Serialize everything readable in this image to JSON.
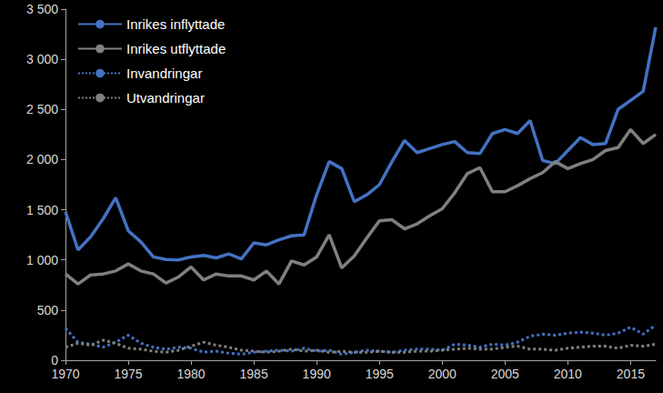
{
  "chart_data": {
    "type": "line",
    "x": [
      1970,
      1971,
      1972,
      1973,
      1974,
      1975,
      1976,
      1977,
      1978,
      1979,
      1980,
      1981,
      1982,
      1983,
      1984,
      1985,
      1986,
      1987,
      1988,
      1989,
      1990,
      1991,
      1992,
      1993,
      1994,
      1995,
      1996,
      1997,
      1998,
      1999,
      2000,
      2001,
      2002,
      2003,
      2004,
      2005,
      2006,
      2007,
      2008,
      2009,
      2010,
      2011,
      2012,
      2013,
      2014,
      2015,
      2016,
      2017
    ],
    "series": [
      {
        "name": "Inrikes inflyttade",
        "color": "#4472c4",
        "line_style": "solid",
        "marker": "none",
        "values": [
          1480,
          1100,
          1230,
          1410,
          1620,
          1290,
          1180,
          1030,
          1005,
          1000,
          1030,
          1045,
          1020,
          1060,
          1010,
          1170,
          1150,
          1200,
          1240,
          1250,
          1650,
          1980,
          1910,
          1580,
          1650,
          1750,
          1980,
          2190,
          2070,
          2110,
          2150,
          2180,
          2070,
          2060,
          2260,
          2300,
          2260,
          2390,
          1990,
          1960,
          2090,
          2220,
          2150,
          2160,
          2500,
          2590,
          2680,
          3320
        ]
      },
      {
        "name": "Inrikes utflyttade",
        "color": "#808080",
        "line_style": "solid",
        "marker": "none",
        "values": [
          860,
          760,
          850,
          860,
          890,
          960,
          890,
          860,
          770,
          830,
          930,
          800,
          860,
          840,
          840,
          800,
          890,
          760,
          990,
          950,
          1030,
          1250,
          920,
          1040,
          1220,
          1390,
          1400,
          1310,
          1360,
          1440,
          1510,
          1670,
          1860,
          1920,
          1680,
          1680,
          1740,
          1810,
          1870,
          1980,
          1910,
          1960,
          2000,
          2090,
          2120,
          2300,
          2160,
          2250
        ]
      },
      {
        "name": "Invandringar",
        "color": "#4472c4",
        "line_style": "dotted",
        "marker": "none",
        "values": [
          320,
          180,
          160,
          130,
          180,
          250,
          170,
          130,
          110,
          130,
          120,
          80,
          90,
          70,
          60,
          80,
          90,
          100,
          90,
          120,
          90,
          100,
          60,
          80,
          100,
          90,
          80,
          100,
          110,
          110,
          100,
          160,
          150,
          130,
          160,
          150,
          180,
          240,
          260,
          250,
          270,
          280,
          270,
          250,
          270,
          330,
          260,
          350
        ]
      },
      {
        "name": "Utvandringar",
        "color": "#808080",
        "line_style": "dotted",
        "marker": "none",
        "values": [
          130,
          170,
          150,
          200,
          170,
          120,
          110,
          90,
          80,
          100,
          140,
          180,
          150,
          130,
          100,
          90,
          80,
          90,
          110,
          90,
          100,
          80,
          90,
          80,
          80,
          90,
          80,
          80,
          90,
          90,
          100,
          110,
          120,
          110,
          110,
          130,
          140,
          110,
          110,
          100,
          120,
          130,
          140,
          140,
          120,
          150,
          140,
          160
        ]
      }
    ],
    "xlim": [
      1970,
      2017
    ],
    "xticks": [
      1970,
      1975,
      1980,
      1985,
      1990,
      1995,
      2000,
      2005,
      2010,
      2015
    ],
    "ylim": [
      0,
      3500
    ],
    "yticks": [
      0,
      500,
      {
        "value": 1000,
        "label": "1 000"
      },
      {
        "value": 1500,
        "label": "1 500"
      },
      {
        "value": 2000,
        "label": "2 000"
      },
      {
        "value": 2500,
        "label": "2 500"
      },
      {
        "value": 3000,
        "label": "3 000"
      },
      {
        "value": 3500,
        "label": "3 500"
      }
    ],
    "grid": false,
    "legend": "upper left"
  }
}
